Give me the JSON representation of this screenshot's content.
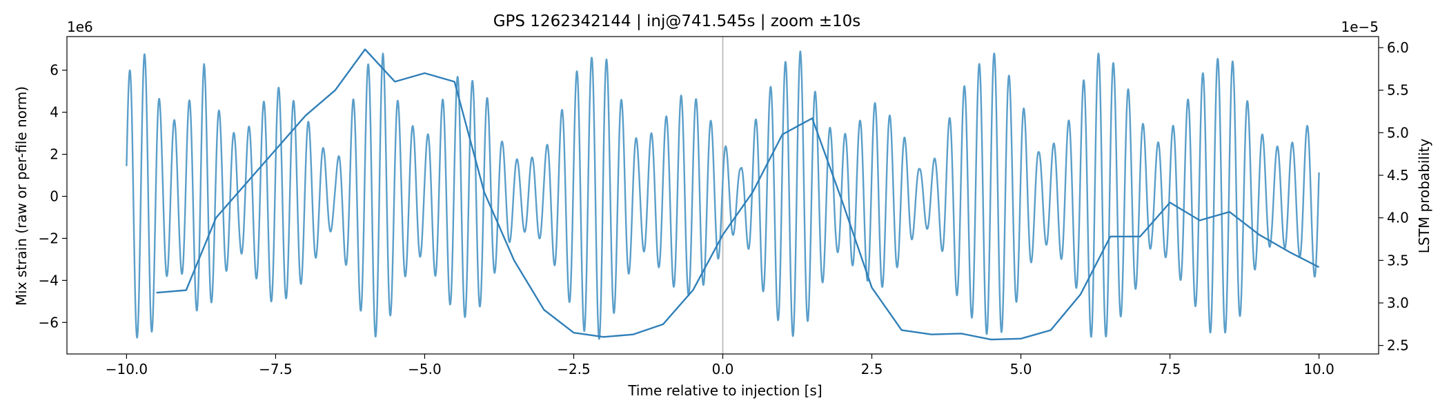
{
  "chart_data": {
    "type": "line",
    "title": "GPS 1262342144 | inj@741.545s | zoom ±10s",
    "xlabel": "Time relative to injection [s]",
    "ylabel_left": "Mix strain (raw or per-file norm)",
    "ylabel_right": "LSTM probability",
    "left_offset_text": "1e6",
    "right_offset_text": "1e−5",
    "xlim": [
      -11.0,
      11.0
    ],
    "ylim_left": [
      -7.5,
      7.6
    ],
    "ylim_right": [
      2.4,
      6.13
    ],
    "x_ticks": [
      -10.0,
      -7.5,
      -5.0,
      -2.5,
      0.0,
      2.5,
      5.0,
      7.5,
      10.0
    ],
    "x_tick_labels": [
      "−10.0",
      "−7.5",
      "−5.0",
      "−2.5",
      "0.0",
      "2.5",
      "5.0",
      "7.5",
      "10.0"
    ],
    "y_left_ticks": [
      -6,
      -4,
      -2,
      0,
      2,
      4,
      6
    ],
    "y_left_tick_labels": [
      "−6",
      "−4",
      "−2",
      "0",
      "2",
      "4",
      "6"
    ],
    "y_right_ticks": [
      2.5,
      3.0,
      3.5,
      4.0,
      4.5,
      5.0,
      5.5,
      6.0
    ],
    "y_right_tick_labels": [
      "2.5",
      "3.0",
      "3.5",
      "4.0",
      "4.5",
      "5.0",
      "5.5",
      "6.0"
    ],
    "vline_x": 0.0,
    "grid": false,
    "colors": {
      "strain": "#5a9ec9",
      "lstm": "#2f7fb8",
      "vline": "#c0c0c0"
    },
    "strain_series": {
      "axis": "left",
      "x_range": [
        -10.0,
        10.0
      ],
      "carrier_cycles_per_s": 4.0,
      "envelope_x": [
        -10.0,
        -9.9,
        -9.6,
        -9.4,
        -9.1,
        -8.7,
        -8.5,
        -8.1,
        -7.7,
        -7.5,
        -7.1,
        -6.7,
        -6.5,
        -6.2,
        -5.9,
        -5.7,
        -5.4,
        -5.0,
        -4.7,
        -4.4,
        -4.0,
        -3.7,
        -3.4,
        -3.0,
        -2.7,
        -2.4,
        -2.0,
        -1.7,
        -1.4,
        -1.0,
        -0.7,
        -0.4,
        0.0,
        0.3,
        0.6,
        1.0,
        1.3,
        1.6,
        1.9,
        2.3,
        2.6,
        3.0,
        3.3,
        3.6,
        3.9,
        4.3,
        4.6,
        5.0,
        5.3,
        5.6,
        5.9,
        6.2,
        6.5,
        6.9,
        7.2,
        7.5,
        7.9,
        8.2,
        8.6,
        8.9,
        9.2,
        9.6,
        10.0
      ],
      "envelope_y": [
        5.2,
        6.7,
        6.8,
        3.9,
        3.5,
        6.3,
        4.3,
        2.6,
        4.5,
        5.3,
        4.3,
        2.3,
        1.3,
        4.6,
        6.6,
        6.8,
        4.1,
        2.6,
        4.6,
        5.9,
        5.1,
        2.6,
        1.6,
        2.1,
        4.1,
        6.3,
        6.9,
        4.6,
        2.4,
        3.6,
        4.8,
        4.6,
        2.6,
        1.3,
        4.1,
        6.3,
        6.9,
        4.6,
        2.6,
        3.6,
        4.6,
        3.1,
        1.3,
        1.9,
        4.6,
        6.3,
        6.9,
        4.6,
        2.1,
        2.6,
        4.1,
        6.9,
        6.6,
        4.6,
        2.3,
        3.1,
        5.1,
        6.6,
        6.4,
        3.6,
        2.3,
        2.6,
        4.1
      ]
    },
    "lstm_series": {
      "axis": "right",
      "name": "LSTM probability",
      "x": [
        -9.5,
        -9.0,
        -8.5,
        -8.0,
        -7.5,
        -7.0,
        -6.5,
        -6.0,
        -5.5,
        -5.0,
        -4.5,
        -4.0,
        -3.5,
        -3.0,
        -2.5,
        -2.0,
        -1.5,
        -1.0,
        -0.5,
        0.0,
        0.5,
        1.0,
        1.5,
        2.0,
        2.5,
        3.0,
        3.5,
        4.0,
        4.5,
        5.0,
        5.5,
        6.0,
        6.5,
        7.0,
        7.5,
        8.0,
        8.5,
        9.0,
        9.5,
        10.0
      ],
      "y": [
        3.12,
        3.15,
        4.0,
        4.4,
        4.8,
        5.2,
        5.5,
        5.98,
        5.6,
        5.7,
        5.6,
        4.3,
        3.5,
        2.92,
        2.65,
        2.6,
        2.63,
        2.75,
        3.15,
        3.8,
        4.3,
        4.98,
        5.17,
        4.2,
        3.18,
        2.68,
        2.63,
        2.64,
        2.57,
        2.58,
        2.68,
        3.1,
        3.78,
        3.78,
        4.18,
        3.97,
        4.07,
        3.8,
        3.6,
        3.42
      ]
    }
  }
}
